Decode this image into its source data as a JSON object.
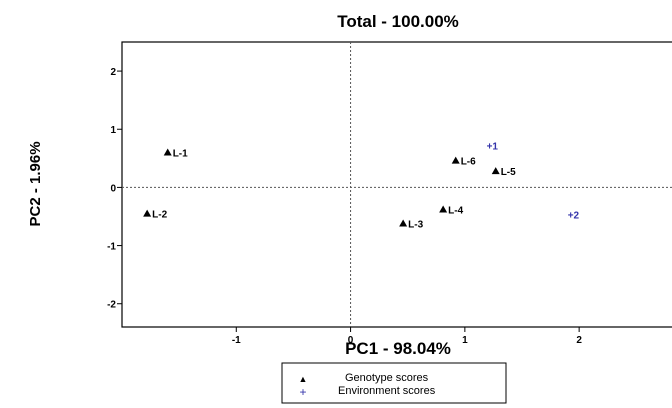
{
  "chart_data": {
    "type": "scatter",
    "title": "Total - 100.00%",
    "xlabel": "PC1 - 98.04%",
    "ylabel": "PC2 - 1.96%",
    "xlim": [
      -2.0,
      2.9
    ],
    "ylim": [
      -2.4,
      2.5
    ],
    "x_ticks": [
      -1,
      0,
      1,
      2
    ],
    "y_ticks": [
      -2,
      -1,
      0,
      1,
      2
    ],
    "reference_lines": {
      "x": 0,
      "y": 0,
      "style": "dotted"
    },
    "series": [
      {
        "name": "Genotype scores",
        "marker": "triangle",
        "color": "#000000",
        "points": [
          {
            "label": "L-1",
            "x": -1.6,
            "y": 0.6
          },
          {
            "label": "L-2",
            "x": -1.78,
            "y": -0.45
          },
          {
            "label": "L-3",
            "x": 0.46,
            "y": -0.62
          },
          {
            "label": "L-4",
            "x": 0.81,
            "y": -0.38
          },
          {
            "label": "L-5",
            "x": 1.27,
            "y": 0.28
          },
          {
            "label": "L-6",
            "x": 0.92,
            "y": 0.46
          }
        ]
      },
      {
        "name": "Environment scores",
        "marker": "plus",
        "color": "#3333aa",
        "points": [
          {
            "label": "+1",
            "x": 1.24,
            "y": 0.72
          },
          {
            "label": "+2",
            "x": 1.95,
            "y": -0.47
          }
        ]
      }
    ],
    "legend": {
      "placement": "bottom-center",
      "entries": [
        {
          "symbol": "▲",
          "label": "Genotype scores",
          "color": "#000000"
        },
        {
          "symbol": "+",
          "label": "Environment scores",
          "color": "#3333aa"
        }
      ]
    }
  }
}
